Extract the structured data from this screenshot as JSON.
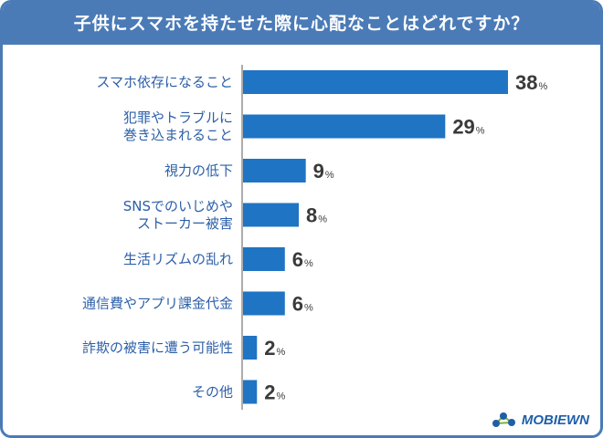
{
  "title": "子供にスマホを持たせた際に心配なことはどれですか？",
  "logo": {
    "text": "MOBIEWN"
  },
  "colors": {
    "bar": "#1f74c4",
    "title_bg": "#4a7bb7",
    "label": "#2c5fa8"
  },
  "chart_data": {
    "type": "bar",
    "orientation": "horizontal",
    "title": "子供にスマホを持たせた際に心配なことはどれですか？",
    "unit": "%",
    "xlim": [
      0,
      38
    ],
    "categories": [
      [
        "スマホ依存になること"
      ],
      [
        "犯罪やトラブルに",
        "巻き込まれること"
      ],
      [
        "視力の低下"
      ],
      [
        "SNSでのいじめや",
        "ストーカー被害"
      ],
      [
        "生活リズムの乱れ"
      ],
      [
        "通信費やアプリ課金代金"
      ],
      [
        "詐欺の被害に遭う可能性"
      ],
      [
        "その他"
      ]
    ],
    "values": [
      38,
      29,
      9,
      8,
      6,
      6,
      2,
      2
    ]
  }
}
